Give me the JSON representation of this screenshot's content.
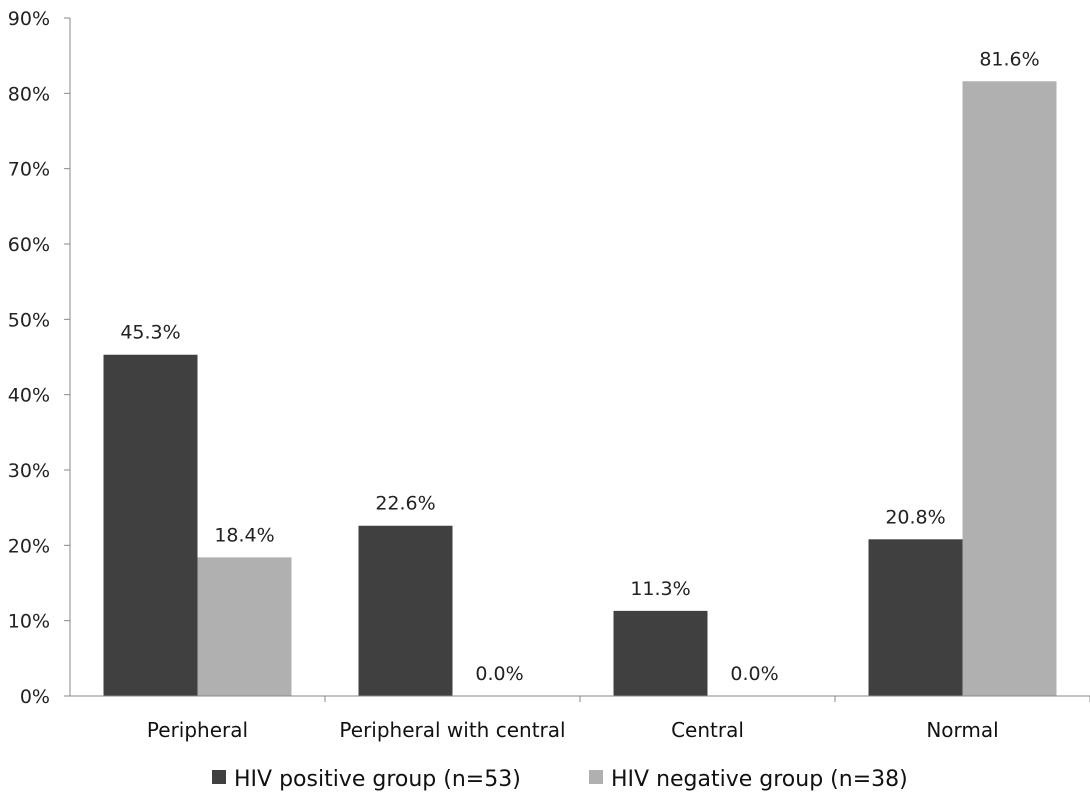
{
  "chart_data": {
    "type": "bar",
    "title": "",
    "xlabel": "",
    "ylabel": "",
    "ylim": [
      0,
      90
    ],
    "yticks": [
      0,
      10,
      20,
      30,
      40,
      50,
      60,
      70,
      80,
      90
    ],
    "ytick_labels": [
      "0%",
      "10%",
      "20%",
      "30%",
      "40%",
      "50%",
      "60%",
      "70%",
      "80%",
      "90%"
    ],
    "grid": false,
    "legend_position": "bottom",
    "categories": [
      "Peripheral",
      "Peripheral with central",
      "Central",
      "Normal"
    ],
    "series": [
      {
        "name": "HIV positive group (n=53)",
        "color": "#404040",
        "values": [
          45.3,
          22.6,
          11.3,
          20.8
        ],
        "labels": [
          "45.3%",
          "22.6%",
          "11.3%",
          "20.8%"
        ]
      },
      {
        "name": "HIV negative group (n=38)",
        "color": "#b0b0b0",
        "values": [
          18.4,
          0.0,
          0.0,
          81.6
        ],
        "labels": [
          "18.4%",
          "0.0%",
          "0.0%",
          "81.6%"
        ]
      }
    ]
  }
}
